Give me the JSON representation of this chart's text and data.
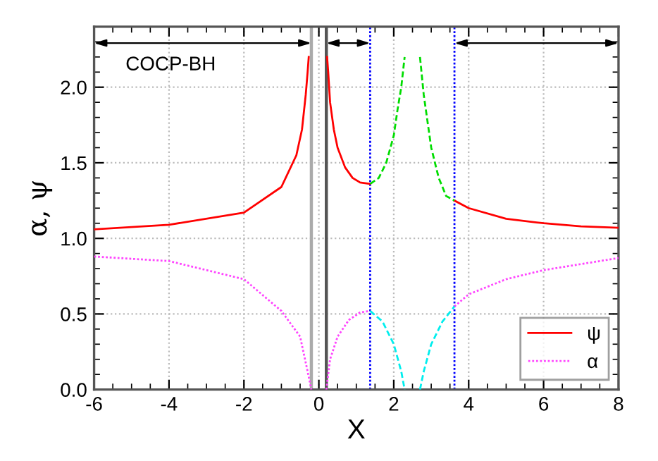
{
  "chart_data": {
    "type": "line",
    "xlabel": "X",
    "ylabel": "α, ψ",
    "annotations": [
      "COCP-BH"
    ],
    "xlim": [
      -6,
      8
    ],
    "ylim": [
      0,
      2.4
    ],
    "xticks": [
      -6,
      -4,
      -2,
      0,
      2,
      4,
      6,
      8
    ],
    "yticks": [
      {
        "value": 0,
        "label": "0.0"
      },
      {
        "value": 0.5,
        "label": "0.5"
      },
      {
        "value": 1,
        "label": "1.0"
      },
      {
        "value": 1.5,
        "label": "1.5"
      },
      {
        "value": 2,
        "label": "2.0"
      }
    ],
    "grid": true,
    "legend": "bottom right",
    "series": [
      {
        "name": "ψ",
        "color": "#ff0000",
        "line_style": "solid",
        "x": [
          -6,
          -4,
          -2,
          -1,
          -0.6,
          -0.45,
          -0.35,
          -0.3,
          -0.27,
          null,
          0.22,
          0.25,
          0.3,
          0.4,
          0.5,
          0.7,
          0.9,
          1.1,
          1.37,
          null,
          3.62,
          4,
          5,
          6,
          7,
          8
        ],
        "values": [
          1.06,
          1.09,
          1.17,
          1.34,
          1.55,
          1.72,
          1.95,
          2.1,
          2.2,
          null,
          2.2,
          2.1,
          1.9,
          1.72,
          1.6,
          1.47,
          1.4,
          1.37,
          1.36,
          null,
          1.25,
          1.2,
          1.13,
          1.1,
          1.08,
          1.07
        ]
      },
      {
        "name": "α",
        "color": "#ff44ff",
        "line_style": "dotted",
        "x": [
          -6,
          -4,
          -2,
          -1,
          -0.5,
          -0.3,
          -0.2,
          null,
          0.2,
          0.3,
          0.5,
          0.8,
          1.1,
          1.37,
          null,
          3.62,
          4,
          5,
          6,
          7,
          8
        ],
        "values": [
          0.88,
          0.85,
          0.73,
          0.52,
          0.35,
          0.12,
          0,
          null,
          0,
          0.2,
          0.35,
          0.46,
          0.51,
          0.52,
          null,
          0.55,
          0.63,
          0.73,
          0.79,
          0.83,
          0.87
        ]
      },
      {
        "color": "#00dd00",
        "line_style": "dashed",
        "x": [
          1.37,
          1.6,
          1.8,
          2.0,
          2.1,
          2.2,
          2.29,
          null,
          2.7,
          2.8,
          3.0,
          3.2,
          3.4,
          3.62
        ],
        "values": [
          1.36,
          1.4,
          1.5,
          1.68,
          1.85,
          2.0,
          2.2,
          null,
          2.2,
          1.95,
          1.6,
          1.4,
          1.28,
          1.25
        ]
      },
      {
        "color": "#00eeee",
        "line_style": "dashed",
        "x": [
          1.37,
          1.7,
          2.0,
          2.2,
          2.29,
          null,
          2.7,
          2.8,
          3.0,
          3.3,
          3.62
        ],
        "values": [
          0.52,
          0.45,
          0.3,
          0.12,
          0,
          null,
          0,
          0.12,
          0.3,
          0.45,
          0.55
        ]
      }
    ],
    "ref_lines": [
      {
        "axis": "x",
        "value": -0.2,
        "color": "#aaaaaa",
        "line_style": "solid"
      },
      {
        "axis": "x",
        "value": 0.2,
        "color": "#555555",
        "line_style": "solid"
      },
      {
        "axis": "x",
        "value": 1.37,
        "color": "#0000ff",
        "line_style": "dotted"
      },
      {
        "axis": "x",
        "value": 3.62,
        "color": "#0000ff",
        "line_style": "dotted"
      }
    ]
  }
}
